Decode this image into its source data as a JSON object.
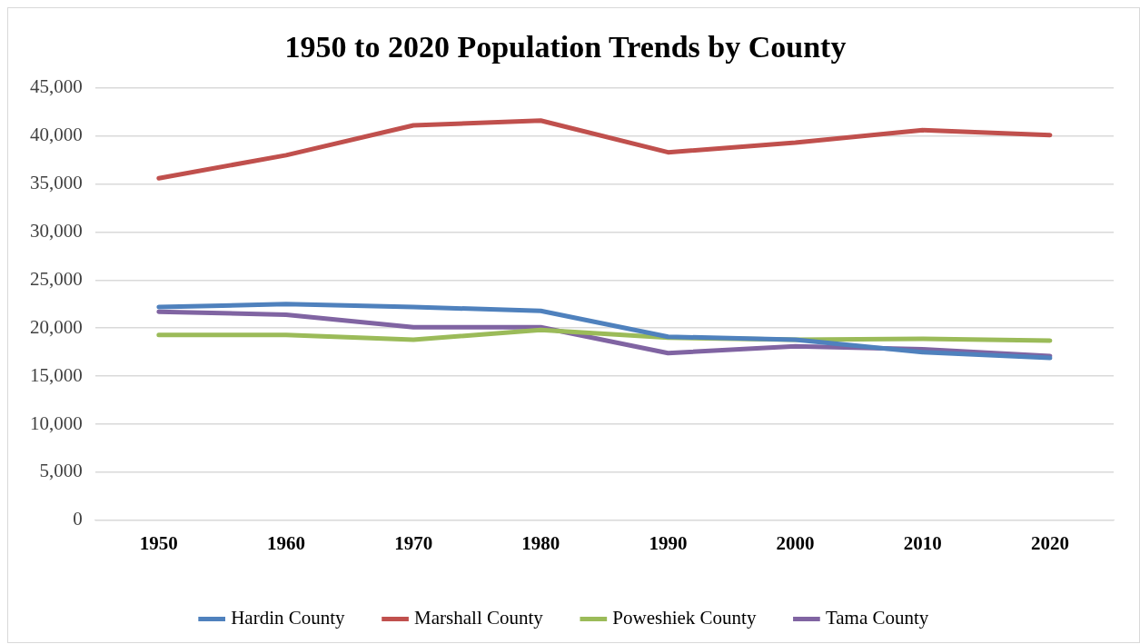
{
  "chart_data": {
    "type": "line",
    "title": "1950 to 2020 Population Trends by County",
    "categories": [
      "1950",
      "1960",
      "1970",
      "1980",
      "1990",
      "2000",
      "2010",
      "2020"
    ],
    "series": [
      {
        "name": "Hardin County",
        "color": "#4f81bd",
        "values": [
          22200,
          22500,
          22200,
          21800,
          19100,
          18800,
          17500,
          16900
        ]
      },
      {
        "name": "Marshall County",
        "color": "#c0504d",
        "values": [
          35600,
          38000,
          41100,
          41600,
          38300,
          39300,
          40600,
          40100
        ]
      },
      {
        "name": "Poweshiek County",
        "color": "#9bbb59",
        "values": [
          19300,
          19300,
          18800,
          19800,
          19000,
          18800,
          18900,
          18700
        ]
      },
      {
        "name": "Tama County",
        "color": "#8064a2",
        "values": [
          21700,
          21400,
          20100,
          20100,
          17400,
          18100,
          17800,
          17100
        ]
      }
    ],
    "ylim": [
      0,
      45000
    ],
    "yticks": [
      0,
      {
        "value": 5000,
        "label": "5,000"
      },
      {
        "value": 10000,
        "label": "10,000"
      },
      {
        "value": 15000,
        "label": "15,000"
      },
      {
        "value": 20000,
        "label": "20,000"
      },
      {
        "value": 25000,
        "label": "25,000"
      },
      {
        "value": 30000,
        "label": "30,000"
      },
      {
        "value": 35000,
        "label": "35,000"
      },
      {
        "value": 40000,
        "label": "40,000"
      },
      {
        "value": 45000,
        "label": "45,000"
      }
    ],
    "grid": "y",
    "legend": "bottom",
    "marker": "none",
    "line_style": "solid"
  }
}
